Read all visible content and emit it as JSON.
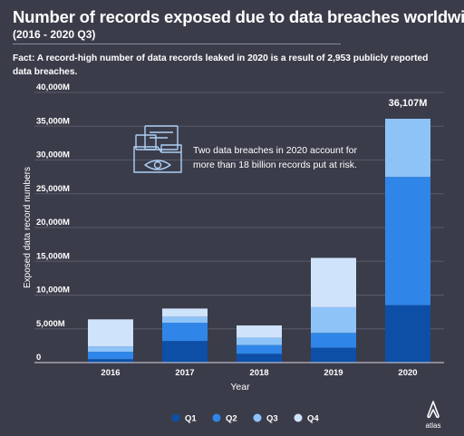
{
  "title": "Number of records exposed due to data breaches worldwide",
  "subtitle": "(2016 - 2020 Q3)",
  "fact": "Fact: A record-high number of data records leaked in 2020 is a result of 2,953 publicly reported data breaches.",
  "logo": {
    "text": "atlas",
    "icon": "atlas-a-icon"
  },
  "colors": {
    "background": "#3b3c4a",
    "Q1": "#0d4fa6",
    "Q2": "#2f86e8",
    "Q3": "#8ec3f7",
    "Q4": "#cfe3fb"
  },
  "chart_data": {
    "type": "bar",
    "stacked": true,
    "categories": [
      "2016",
      "2017",
      "2018",
      "2019",
      "2020"
    ],
    "series": [
      {
        "name": "Q1",
        "values": [
          500,
          3200,
          1300,
          2200,
          8500
        ]
      },
      {
        "name": "Q2",
        "values": [
          1100,
          2700,
          1300,
          2200,
          19000
        ]
      },
      {
        "name": "Q3",
        "values": [
          800,
          900,
          1100,
          3800,
          8607
        ]
      },
      {
        "name": "Q4",
        "values": [
          4000,
          1200,
          1800,
          7300,
          0
        ]
      }
    ],
    "yticks": [
      0,
      5000,
      10000,
      15000,
      20000,
      25000,
      30000,
      35000,
      40000
    ],
    "ytick_labels": [
      "0",
      "5,000M",
      "10,000M",
      "15,000M",
      "20,000M",
      "25,000M",
      "30,000M",
      "35,000M",
      "40,000M"
    ],
    "xlabel": "Year",
    "ylabel": "Exposed data record numbers",
    "ylim": [
      0,
      40000
    ],
    "grid": true,
    "legend_position": "bottom",
    "annotations": [
      {
        "text": "36,107M",
        "category": "2020"
      },
      {
        "text": "Two data breaches in 2020 account for more than 18 billion records put at risk.",
        "icon": "folder-eye-icon"
      }
    ]
  }
}
